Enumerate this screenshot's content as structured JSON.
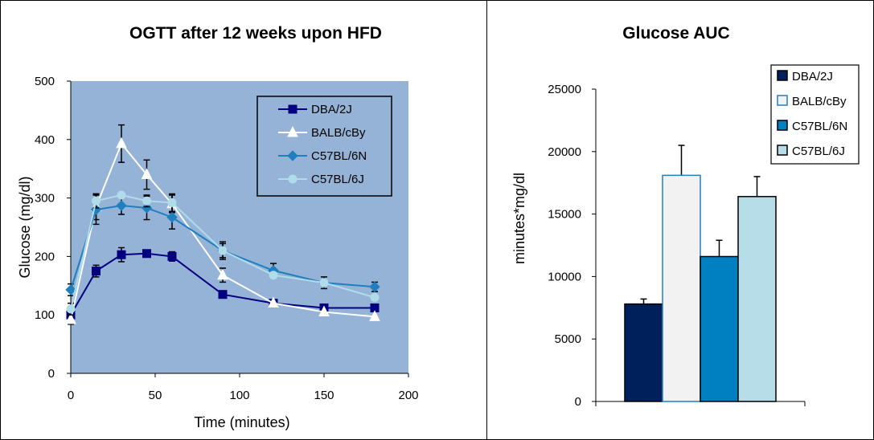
{
  "chart_data": [
    {
      "type": "line",
      "title": "OGTT after 12 weeks upon HFD",
      "xlabel": "Time (minutes)",
      "ylabel": "Glucose (mg/dl)",
      "xlim": [
        0,
        200
      ],
      "ylim": [
        0,
        500
      ],
      "x_ticks": [
        0,
        50,
        100,
        150,
        200
      ],
      "y_ticks": [
        0,
        100,
        200,
        300,
        400,
        500
      ],
      "plot_background": "#95b3d7",
      "legend_position": "top-right",
      "x": [
        0,
        15,
        30,
        45,
        60,
        90,
        120,
        150,
        180
      ],
      "series": [
        {
          "name": "DBA/2J",
          "marker": "square",
          "color": "#000080",
          "values": [
            100,
            175,
            203,
            205,
            200,
            135,
            120,
            112,
            112
          ],
          "errors": [
            8,
            10,
            12,
            0,
            8,
            0,
            0,
            0,
            0
          ]
        },
        {
          "name": "BALB/cBy",
          "marker": "triangle",
          "color": "#ffffff",
          "values": [
            92,
            285,
            393,
            340,
            290,
            168,
            120,
            105,
            97
          ],
          "errors": [
            8,
            22,
            32,
            25,
            15,
            12,
            0,
            0,
            0
          ]
        },
        {
          "name": "C57BL/6N",
          "marker": "diamond",
          "color": "#1f7fbf",
          "values": [
            143,
            280,
            287,
            283,
            267,
            210,
            176,
            155,
            148
          ],
          "errors": [
            10,
            25,
            15,
            20,
            20,
            12,
            12,
            10,
            8
          ]
        },
        {
          "name": "C57BL/6J",
          "marker": "circle",
          "color": "#b0dcea",
          "values": [
            110,
            295,
            305,
            295,
            292,
            210,
            168,
            155,
            130
          ],
          "errors": [
            10,
            12,
            0,
            10,
            15,
            15,
            0,
            0,
            0
          ]
        }
      ]
    },
    {
      "type": "bar",
      "title": "Glucose AUC",
      "ylabel": "minutes*mg/dl",
      "ylim": [
        0,
        25000
      ],
      "y_ticks": [
        0,
        5000,
        10000,
        15000,
        20000,
        25000
      ],
      "legend_position": "top-right",
      "series": [
        {
          "name": "DBA/2J",
          "value": 7800,
          "error": 400,
          "fill": "#00205b",
          "stroke": "#000000"
        },
        {
          "name": "BALB/cBy",
          "value": 18100,
          "error": 2400,
          "fill": "#f2f2f2",
          "stroke": "#1f7fbf"
        },
        {
          "name": "C57BL/6N",
          "value": 11600,
          "error": 1300,
          "fill": "#0080c0",
          "stroke": "#000000"
        },
        {
          "name": "C57BL/6J",
          "value": 16400,
          "error": 1600,
          "fill": "#b7dde8",
          "stroke": "#000000"
        }
      ]
    }
  ]
}
